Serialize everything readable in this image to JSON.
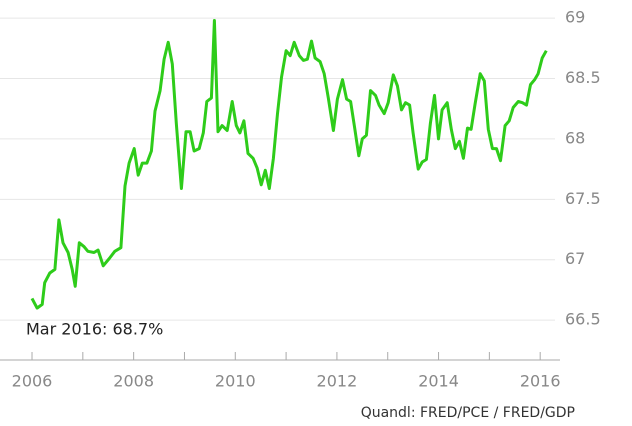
{
  "chart_data": {
    "type": "line",
    "annotation": "Mar 2016: 68.7%",
    "source": "Quandl: FRED/PCE / FRED/GDP",
    "series": [
      {
        "color": "#2ecc1a",
        "x": [
          2006.0,
          2006.1,
          2006.2,
          2006.25,
          2006.35,
          2006.45,
          2006.53,
          2006.61,
          2006.71,
          2006.79,
          2006.85,
          2006.93,
          2007.02,
          2007.1,
          2007.22,
          2007.3,
          2007.4,
          2007.52,
          2007.63,
          2007.75,
          2007.83,
          2007.91,
          2008.01,
          2008.09,
          2008.17,
          2008.26,
          2008.35,
          2008.42,
          2008.52,
          2008.6,
          2008.68,
          2008.76,
          2008.84,
          2008.94,
          2009.03,
          2009.11,
          2009.19,
          2009.29,
          2009.37,
          2009.44,
          2009.53,
          2009.59,
          2009.66,
          2009.74,
          2009.84,
          2009.94,
          2010.02,
          2010.09,
          2010.17,
          2010.25,
          2010.35,
          2010.43,
          2010.51,
          2010.59,
          2010.67,
          2010.75,
          2010.83,
          2010.91,
          2011.0,
          2011.08,
          2011.16,
          2011.26,
          2011.34,
          2011.42,
          2011.5,
          2011.57,
          2011.67,
          2011.75,
          2011.83,
          2011.93,
          2012.01,
          2012.11,
          2012.19,
          2012.27,
          2012.35,
          2012.43,
          2012.5,
          2012.58,
          2012.66,
          2012.76,
          2012.83,
          2012.93,
          2013.01,
          2013.11,
          2013.19,
          2013.27,
          2013.35,
          2013.43,
          2013.5,
          2013.6,
          2013.68,
          2013.76,
          2013.84,
          2013.92,
          2014.0,
          2014.07,
          2014.17,
          2014.25,
          2014.33,
          2014.41,
          2014.49,
          2014.57,
          2014.64,
          2014.72,
          2014.82,
          2014.9,
          2014.98,
          2015.06,
          2015.14,
          2015.22,
          2015.31,
          2015.39,
          2015.47,
          2015.57,
          2015.65,
          2015.73,
          2015.81,
          2015.89,
          2015.96,
          2016.04,
          2016.12
        ],
        "values": [
          66.68,
          66.6,
          66.63,
          66.81,
          66.89,
          66.92,
          67.33,
          67.14,
          67.06,
          66.92,
          66.78,
          67.14,
          67.11,
          67.07,
          67.06,
          67.08,
          66.95,
          67.01,
          67.07,
          67.1,
          67.61,
          67.8,
          67.92,
          67.7,
          67.8,
          67.8,
          67.9,
          68.23,
          68.4,
          68.66,
          68.8,
          68.62,
          68.13,
          67.59,
          68.06,
          68.06,
          67.9,
          67.92,
          68.05,
          68.31,
          68.34,
          68.98,
          68.06,
          68.11,
          68.07,
          68.31,
          68.11,
          68.05,
          68.15,
          67.88,
          67.84,
          67.76,
          67.62,
          67.74,
          67.59,
          67.84,
          68.21,
          68.51,
          68.73,
          68.69,
          68.8,
          68.69,
          68.65,
          68.66,
          68.81,
          68.67,
          68.64,
          68.54,
          68.34,
          68.07,
          68.33,
          68.49,
          68.33,
          68.31,
          68.09,
          67.86,
          68.0,
          68.03,
          68.4,
          68.36,
          68.28,
          68.21,
          68.3,
          68.53,
          68.44,
          68.24,
          68.3,
          68.28,
          68.05,
          67.75,
          67.81,
          67.83,
          68.13,
          68.36,
          68.0,
          68.24,
          68.3,
          68.08,
          67.92,
          67.98,
          67.84,
          68.09,
          68.08,
          68.29,
          68.54,
          68.48,
          68.08,
          67.92,
          67.92,
          67.82,
          68.11,
          68.15,
          68.26,
          68.31,
          68.3,
          68.28,
          68.45,
          68.49,
          68.54,
          68.67,
          68.73
        ]
      }
    ],
    "xlim": [
      2005.37,
      2016.39
    ],
    "xticks": [
      2006,
      2008,
      2010,
      2012,
      2014,
      2016
    ],
    "xminorticks": [
      2007,
      2009,
      2011,
      2013,
      2015
    ],
    "ylim": [
      66.17,
      69.15
    ],
    "yticks": [
      {
        "value": 66.5,
        "label": "66.5"
      },
      67,
      {
        "value": 67.5,
        "label": "67.5"
      },
      68,
      {
        "value": 68.5,
        "label": "68.5"
      },
      69
    ],
    "grid": true
  }
}
